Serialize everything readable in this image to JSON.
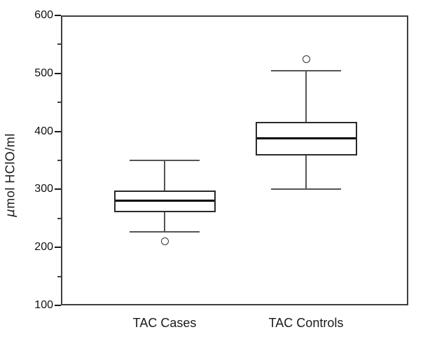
{
  "figure": {
    "background": "#ffffff",
    "frame_color": "#3f3f3f"
  },
  "chart_data": {
    "type": "boxplot",
    "title": "",
    "xlabel": "",
    "ylabel": "μmol HClO/ml",
    "ylabel_mu": "μ",
    "ylabel_rest": "mol HClO/ml",
    "ylim": [
      100,
      600
    ],
    "y_major_ticks": [
      100,
      200,
      300,
      400,
      500,
      600
    ],
    "y_minor_ticks": [
      150,
      250,
      350,
      450,
      550
    ],
    "grid": "off",
    "legend": "none",
    "categories": [
      "TAC Cases",
      "TAC Controls"
    ],
    "series": [
      {
        "name": "TAC Cases",
        "whisker_low": 227,
        "q1": 261,
        "median": 281,
        "q3": 298,
        "whisker_high": 350,
        "outliers": [
          210
        ]
      },
      {
        "name": "TAC Controls",
        "whisker_low": 300,
        "q1": 358,
        "median": 388,
        "q3": 417,
        "whisker_high": 505,
        "outliers": [
          524
        ]
      }
    ],
    "colors": {
      "line": "#555555",
      "box_border": "#2a2a2a",
      "median": "#000000",
      "box_fill": "#ffffff"
    }
  }
}
